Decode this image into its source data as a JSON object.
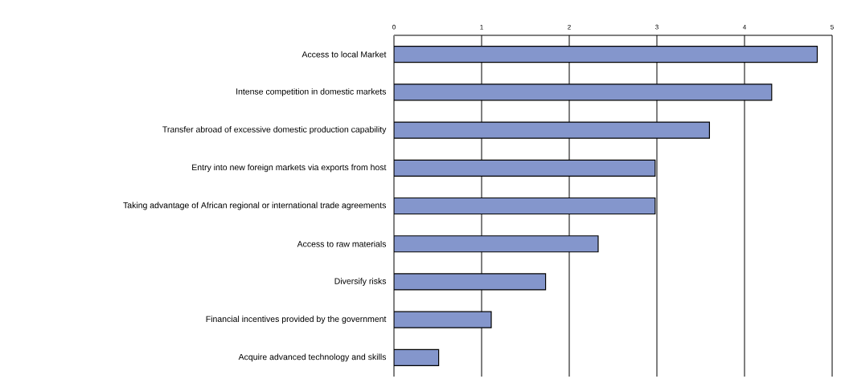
{
  "chart_data": {
    "type": "bar",
    "orientation": "horizontal",
    "categories": [
      "Access to local Market",
      "Intense competition in domestic markets",
      "Transfer abroad of excessive domestic production capability",
      "Entry into new  foreign markets via exports from host",
      "Taking advantage of African regional or international trade agreements",
      "Access to raw materials",
      "Diversify risks",
      "Financial incentives provided by the government",
      "Acquire advanced technology and skills"
    ],
    "values": [
      4.83,
      4.31,
      3.6,
      2.98,
      2.98,
      2.33,
      1.73,
      1.11,
      0.51
    ],
    "color": "#8496cc",
    "xlim": [
      0,
      5
    ],
    "xticks": [
      0,
      1,
      2,
      3,
      4,
      5
    ],
    "grid": "x"
  }
}
